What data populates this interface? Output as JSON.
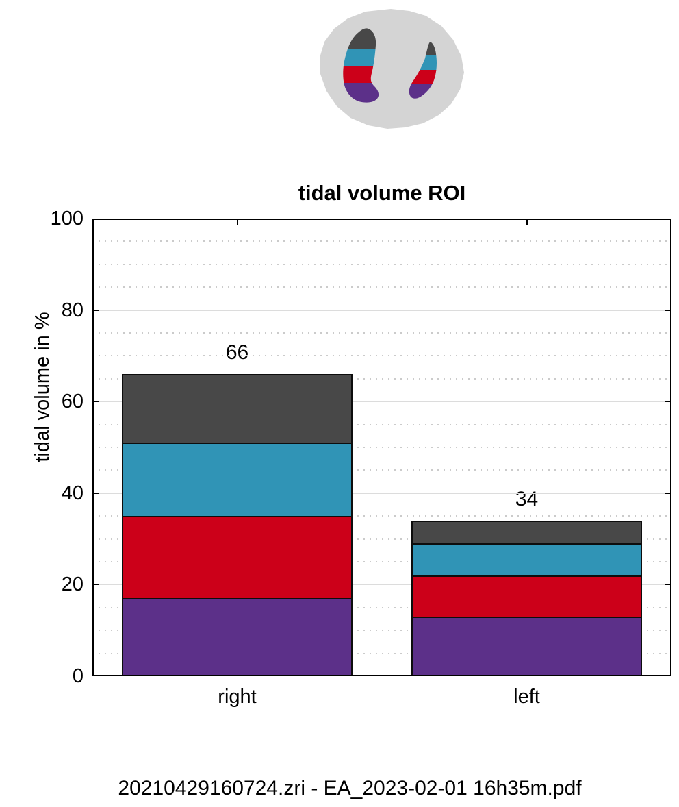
{
  "page": {
    "background": "#ffffff",
    "text_color": "#000000",
    "footer_text": "20210429160724.zri - EA_2023-02-01 16h35m.pdf"
  },
  "lung_map": {
    "body_color": "#d4d4d4",
    "band_colors": [
      "#484848",
      "#3094b6",
      "#cc0019",
      "#5c3089"
    ]
  },
  "chart_data": {
    "type": "bar",
    "stacked": true,
    "title": "tidal volume ROI",
    "xlabel": "",
    "ylabel": "tidal volume in %",
    "categories": [
      "right",
      "left"
    ],
    "series": [
      {
        "name": "purple-bottom-segment",
        "color": "#5c3089",
        "values": [
          17,
          13
        ]
      },
      {
        "name": "red-segment",
        "color": "#cc0019",
        "values": [
          18,
          9
        ]
      },
      {
        "name": "teal-segment",
        "color": "#3094b6",
        "values": [
          16,
          7
        ]
      },
      {
        "name": "dark-gray-top-segment",
        "color": "#484848",
        "values": [
          15,
          5
        ]
      }
    ],
    "totals": [
      66,
      34
    ],
    "ylim": [
      0,
      100
    ],
    "yticks": [
      0,
      20,
      40,
      60,
      80,
      100
    ],
    "minor_grid_step": 5,
    "grid": true,
    "legend_position": "none",
    "axis_color": "#000000",
    "major_grid_color": "#dcdcdc",
    "minor_grid_color": "#cbcbcb"
  }
}
